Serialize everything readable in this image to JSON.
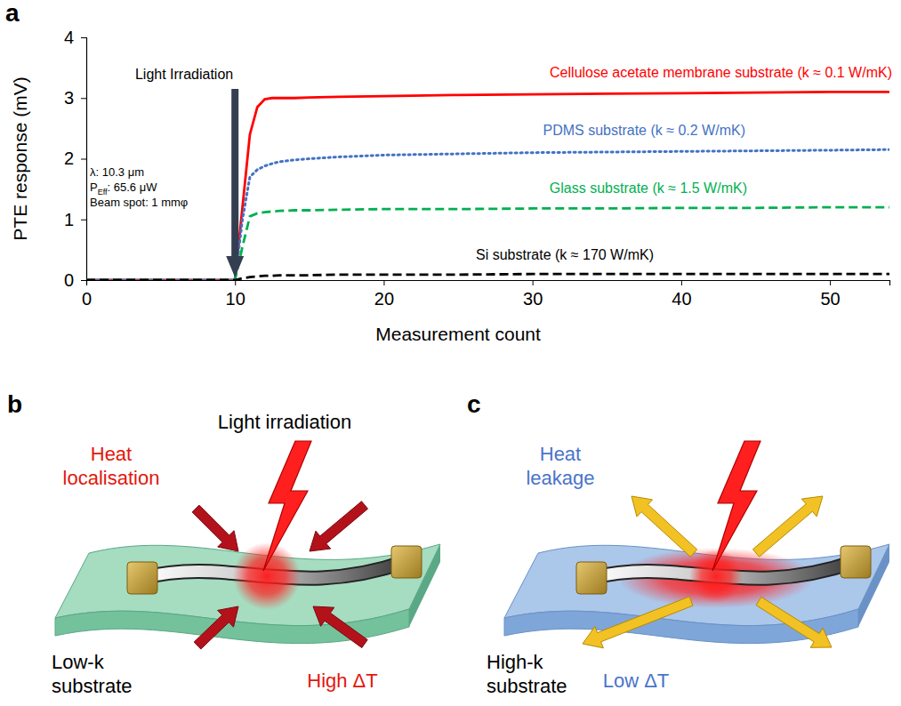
{
  "chart_data": {
    "type": "line",
    "panel_label": "a",
    "x_label": "Measurement count",
    "y_label": "PTE response (mV)",
    "x": [
      0,
      2,
      4,
      6,
      8,
      9,
      10,
      10.5,
      11,
      11.5,
      12,
      12.5,
      13,
      14,
      15,
      17,
      20,
      25,
      30,
      35,
      40,
      45,
      50,
      54
    ],
    "xlim": [
      0,
      54
    ],
    "xticks": [
      0,
      10,
      20,
      30,
      40,
      50
    ],
    "ylim": [
      0,
      4
    ],
    "yticks": [
      0,
      1,
      2,
      3,
      4
    ],
    "grid": false,
    "series": [
      {
        "name": "Cellulose acetate membrane substrate (k ≈ 0.1 W/mK)",
        "color": "#ff0000",
        "line_style": "solid",
        "values": [
          0,
          0,
          0,
          0,
          0,
          0,
          0,
          1.2,
          2.4,
          2.85,
          2.98,
          3.0,
          3.0,
          3.0,
          3.01,
          3.02,
          3.03,
          3.05,
          3.06,
          3.07,
          3.08,
          3.09,
          3.1,
          3.1
        ]
      },
      {
        "name": "PDMS substrate (k ≈ 0.2 W/mK)",
        "color": "#4472c4",
        "line_style": "dotted",
        "values": [
          0,
          0,
          0,
          0,
          0,
          0,
          0,
          1.0,
          1.7,
          1.82,
          1.88,
          1.92,
          1.95,
          1.98,
          2.0,
          2.03,
          2.06,
          2.08,
          2.1,
          2.11,
          2.12,
          2.13,
          2.14,
          2.15
        ]
      },
      {
        "name": "Glass substrate (k ≈ 1.5 W/mK)",
        "color": "#00b050",
        "line_style": "dashed",
        "values": [
          0,
          0,
          0,
          0,
          0,
          0,
          0,
          0.55,
          1.05,
          1.1,
          1.12,
          1.13,
          1.14,
          1.15,
          1.15,
          1.16,
          1.17,
          1.17,
          1.18,
          1.18,
          1.19,
          1.19,
          1.2,
          1.2
        ]
      },
      {
        "name": "Si substrate (k ≈ 170 W/mK)",
        "color": "#000000",
        "line_style": "dashed",
        "values": [
          0,
          0,
          0,
          0,
          0,
          0,
          0,
          0.03,
          0.05,
          0.06,
          0.07,
          0.07,
          0.08,
          0.08,
          0.08,
          0.09,
          0.09,
          0.09,
          0.1,
          0.1,
          0.1,
          0.1,
          0.1,
          0.1
        ]
      }
    ],
    "annotations": [
      {
        "text": "Light Irradiation",
        "x": 10
      }
    ],
    "conditions": [
      [
        {
          "t": "λ: 10.3 μm"
        }
      ],
      [
        {
          "t": "P"
        },
        {
          "t": "Eff",
          "sub": true
        },
        {
          "t": ": 65.6 μW"
        }
      ],
      [
        {
          "t": "Beam spot: 1 mmφ"
        }
      ]
    ]
  },
  "diagrams": [
    {
      "panel_label": "b",
      "title": "Light irradiation",
      "flow": [
        "Heat",
        "localisation"
      ],
      "substrate": [
        "Low-k",
        "substrate"
      ],
      "delta": "High ΔT"
    },
    {
      "panel_label": "c",
      "flow": [
        "Heat",
        "leakage"
      ],
      "substrate": [
        "High-k",
        "substrate"
      ],
      "delta": "Low ΔT"
    }
  ]
}
